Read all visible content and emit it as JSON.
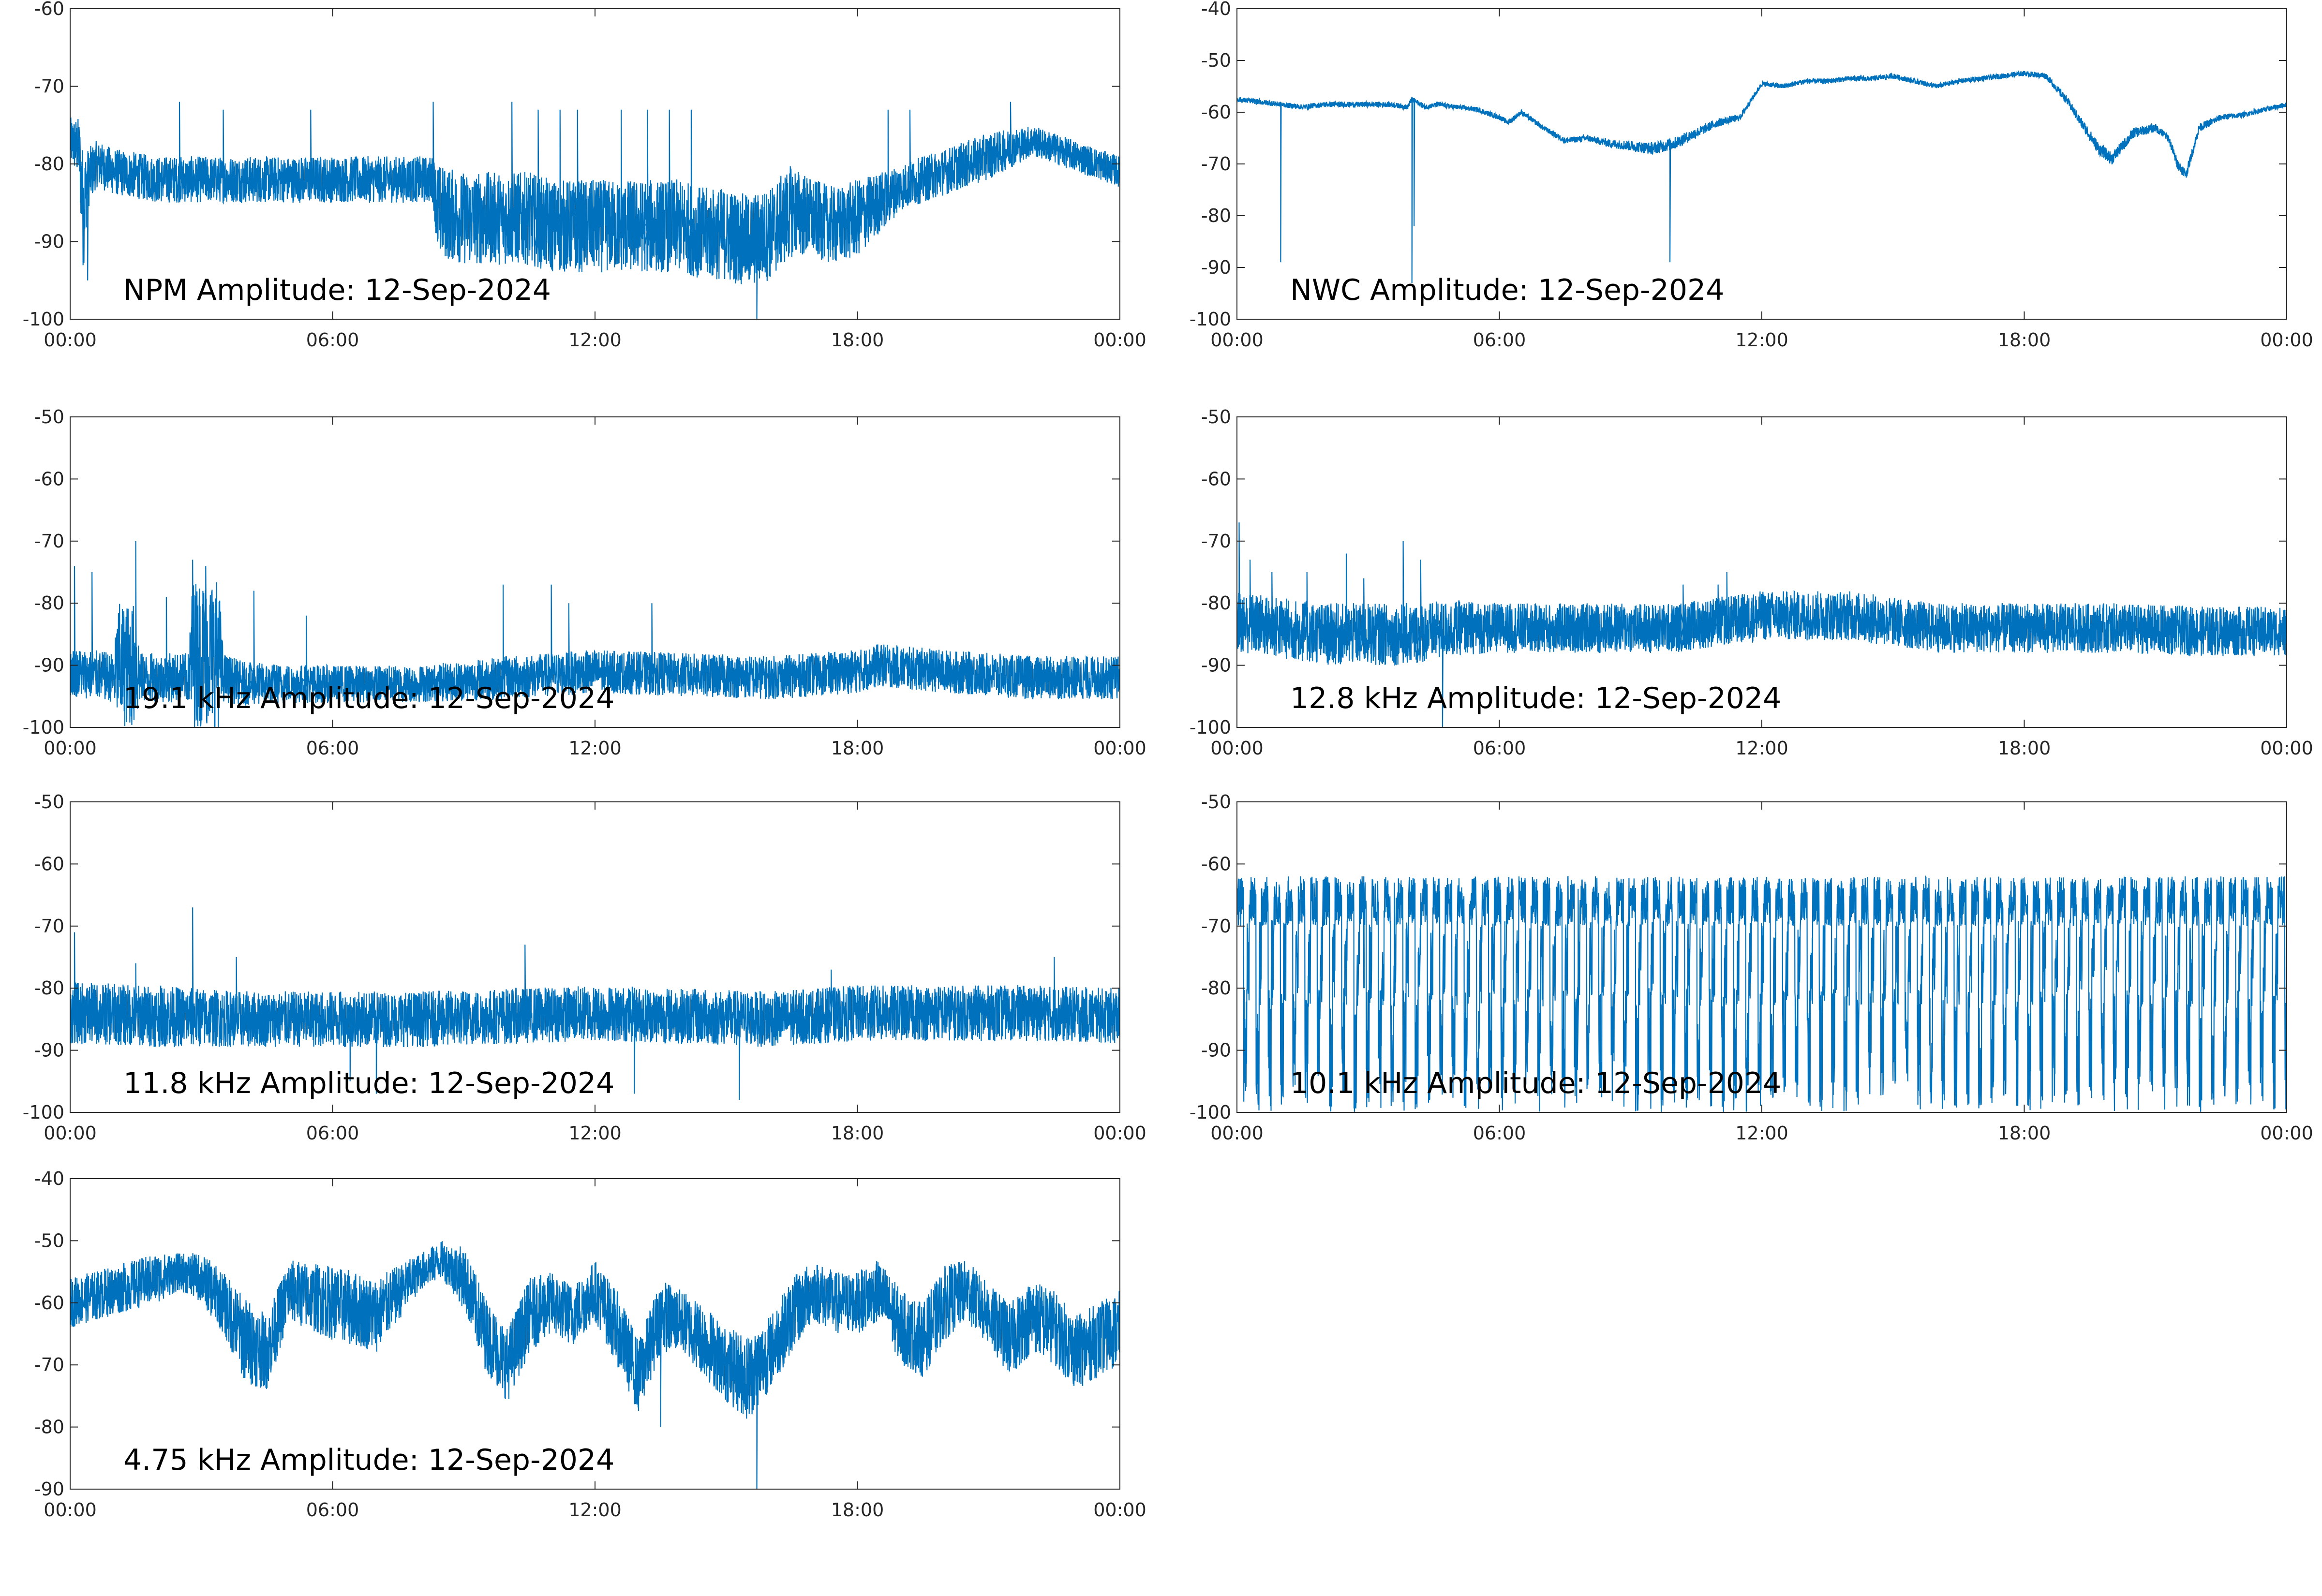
{
  "line_color": "#0072BD",
  "chart_data": [
    {
      "type": "line",
      "title": "NPM Amplitude: 12-Sep-2024",
      "xlabel": "",
      "ylabel": "",
      "xlim": [
        "00:00",
        "24:00"
      ],
      "ylim": [
        -100,
        -60
      ],
      "xticks": [
        "00:00",
        "06:00",
        "12:00",
        "18:00",
        "00:00"
      ],
      "yticks": [
        "-60",
        "-70",
        "-80",
        "-90",
        "-100"
      ],
      "series": [
        {
          "x_hours": [
            0,
            0.2,
            0.3,
            0.4,
            0.6,
            1,
            1.5,
            2,
            2.5,
            3,
            3.5,
            4,
            4.5,
            5,
            5.5,
            6,
            6.5,
            7,
            7.5,
            8,
            8.3,
            8.4,
            9,
            9.5,
            10,
            10.5,
            11,
            11.5,
            12,
            12.5,
            13,
            13.5,
            14,
            14.5,
            15,
            15.5,
            16,
            16.5,
            17,
            17.5,
            18,
            18.5,
            19,
            19.5,
            20,
            20.5,
            21,
            21.5,
            22,
            22.5,
            23,
            23.5,
            24
          ],
          "center": [
            -77,
            -78,
            -86,
            -82,
            -80,
            -81,
            -81.5,
            -82,
            -82,
            -82,
            -82,
            -82,
            -82,
            -82,
            -82,
            -82,
            -82,
            -82,
            -82,
            -82,
            -82,
            -86,
            -87,
            -87,
            -87,
            -87,
            -88,
            -88,
            -88,
            -88,
            -88,
            -88,
            -88,
            -89,
            -89,
            -90,
            -89,
            -86,
            -87,
            -88,
            -87,
            -85,
            -83,
            -82,
            -81,
            -80,
            -79,
            -78,
            -77,
            -78,
            -79,
            -80,
            -81
          ],
          "spread": [
            3,
            4,
            8,
            4,
            3,
            3,
            3,
            3,
            3,
            3,
            3,
            3,
            3,
            3,
            3,
            3,
            3,
            3,
            3,
            3,
            3,
            6,
            6,
            6,
            6,
            6,
            6,
            6,
            6,
            6,
            6,
            6,
            6,
            6,
            6,
            6,
            6,
            6,
            5,
            5,
            5,
            4,
            3,
            3,
            3,
            3,
            3,
            2.5,
            2,
            2,
            2,
            2,
            2
          ],
          "spikes": [
            [
              0.4,
              -95
            ],
            [
              0.7,
              -78
            ],
            [
              2.5,
              -72
            ],
            [
              3.5,
              -73
            ],
            [
              5.5,
              -73
            ],
            [
              8.3,
              -72
            ],
            [
              8.4,
              -90
            ],
            [
              10.1,
              -72
            ],
            [
              10.7,
              -73
            ],
            [
              11.2,
              -73
            ],
            [
              11.6,
              -73
            ],
            [
              12.6,
              -73
            ],
            [
              13.2,
              -73
            ],
            [
              13.7,
              -73
            ],
            [
              14.2,
              -73
            ],
            [
              15.7,
              -100
            ],
            [
              18.7,
              -73
            ],
            [
              19.2,
              -73
            ],
            [
              21.5,
              -72
            ]
          ]
        }
      ]
    },
    {
      "type": "line",
      "title": "NWC Amplitude: 12-Sep-2024",
      "xlabel": "",
      "ylabel": "",
      "xlim": [
        "00:00",
        "24:00"
      ],
      "ylim": [
        -100,
        -40
      ],
      "xticks": [
        "00:00",
        "06:00",
        "12:00",
        "18:00",
        "00:00"
      ],
      "yticks": [
        "-40",
        "-50",
        "-60",
        "-70",
        "-80",
        "-90",
        "-100"
      ],
      "series": [
        {
          "x_hours": [
            0,
            0.5,
            1,
            1.5,
            2,
            2.5,
            3,
            3.5,
            3.9,
            4,
            4.3,
            4.6,
            5,
            5.5,
            6,
            6.2,
            6.5,
            7,
            7.5,
            8,
            8.5,
            9,
            9.5,
            10,
            10.5,
            11,
            11.5,
            12,
            12.5,
            13,
            13.5,
            14,
            14.5,
            15,
            15.5,
            16,
            16.5,
            17,
            17.5,
            18,
            18.5,
            19,
            19.3,
            19.7,
            20,
            20.5,
            21,
            21.3,
            21.5,
            21.7,
            22,
            22.5,
            23,
            23.5,
            24
          ],
          "center": [
            -57.5,
            -58,
            -58.5,
            -59,
            -58.5,
            -58.5,
            -58.5,
            -58.5,
            -59,
            -57.5,
            -59,
            -58.5,
            -59,
            -59.5,
            -61,
            -62,
            -60,
            -63,
            -65.5,
            -65,
            -66,
            -66.5,
            -67,
            -66,
            -64,
            -62,
            -61,
            -54.5,
            -55,
            -54,
            -54,
            -53.5,
            -53.5,
            -53,
            -54,
            -55,
            -54,
            -53.5,
            -53,
            -52.5,
            -53,
            -58,
            -62,
            -67,
            -69,
            -64,
            -63,
            -65,
            -70,
            -72,
            -63,
            -61,
            -60.5,
            -59.5,
            -58.5
          ],
          "spread": [
            0.5,
            0.5,
            0.5,
            0.5,
            0.5,
            0.5,
            0.5,
            0.5,
            0.5,
            0.5,
            0.5,
            0.5,
            0.5,
            0.5,
            0.5,
            0.5,
            0.5,
            0.5,
            0.6,
            0.6,
            0.8,
            1,
            1.2,
            1.2,
            1,
            0.8,
            0.6,
            0.5,
            0.5,
            0.5,
            0.5,
            0.5,
            0.5,
            0.5,
            0.5,
            0.5,
            0.5,
            0.5,
            0.5,
            0.5,
            0.6,
            0.8,
            1,
            1.2,
            1.2,
            1,
            0.8,
            0.8,
            1,
            1,
            0.8,
            0.6,
            0.5,
            0.5,
            0.5
          ],
          "spikes": [
            [
              1,
              -89
            ],
            [
              4,
              -93
            ],
            [
              4.05,
              -82
            ],
            [
              9.9,
              -89
            ]
          ]
        }
      ]
    },
    {
      "type": "line",
      "title": "19.1 kHz Amplitude: 12-Sep-2024",
      "xlabel": "",
      "ylabel": "",
      "xlim": [
        "00:00",
        "24:00"
      ],
      "ylim": [
        -100,
        -50
      ],
      "xticks": [
        "00:00",
        "06:00",
        "12:00",
        "18:00",
        "00:00"
      ],
      "yticks": [
        "-50",
        "-60",
        "-70",
        "-80",
        "-90",
        "-100"
      ],
      "series": [
        {
          "x_hours": [
            0,
            1,
            1.1,
            1.5,
            1.6,
            2,
            2.7,
            2.8,
            3.4,
            3.5,
            4,
            6,
            8,
            10,
            12,
            14,
            16,
            18,
            18.5,
            20,
            22,
            24
          ],
          "center": [
            -91,
            -92,
            -90,
            -90,
            -92,
            -92,
            -92,
            -88,
            -88,
            -92,
            -93,
            -93,
            -93,
            -92,
            -91,
            -91.5,
            -92,
            -91,
            -90,
            -91,
            -92,
            -92
          ],
          "spread": [
            4,
            4,
            10,
            10,
            4,
            4,
            4,
            12,
            12,
            4,
            3.5,
            3,
            3,
            3.5,
            3.5,
            3.5,
            3.5,
            3.5,
            3.5,
            3.5,
            3.5,
            3.5
          ],
          "spikes": [
            [
              0.1,
              -74
            ],
            [
              0.5,
              -75
            ],
            [
              1.5,
              -70
            ],
            [
              2.2,
              -79
            ],
            [
              2.8,
              -73
            ],
            [
              3.1,
              -74
            ],
            [
              4.2,
              -78
            ],
            [
              5.4,
              -82
            ],
            [
              9.9,
              -77
            ],
            [
              11,
              -77
            ],
            [
              11.4,
              -80
            ],
            [
              13.3,
              -80
            ]
          ]
        }
      ]
    },
    {
      "type": "line",
      "title": "12.8 kHz Amplitude: 12-Sep-2024",
      "xlabel": "",
      "ylabel": "",
      "xlim": [
        "00:00",
        "24:00"
      ],
      "ylim": [
        -100,
        -50
      ],
      "xticks": [
        "00:00",
        "06:00",
        "12:00",
        "18:00",
        "00:00"
      ],
      "yticks": [
        "-50",
        "-60",
        "-70",
        "-80",
        "-90",
        "-100"
      ],
      "series": [
        {
          "x_hours": [
            0,
            1,
            2,
            3,
            4,
            5,
            6,
            8,
            10,
            11,
            12,
            13,
            14,
            15,
            16,
            18,
            20,
            22,
            24
          ],
          "center": [
            -83,
            -84,
            -85,
            -85,
            -85,
            -84,
            -84,
            -84,
            -84,
            -83,
            -82,
            -82,
            -82,
            -83,
            -84,
            -84,
            -84,
            -84.5,
            -84.5
          ],
          "spread": [
            5,
            5,
            5,
            5,
            5,
            4.5,
            4,
            4,
            4,
            4,
            4,
            4,
            4,
            4,
            4,
            4,
            4,
            4,
            4
          ],
          "spikes": [
            [
              0.05,
              -67
            ],
            [
              0.3,
              -73
            ],
            [
              0.8,
              -75
            ],
            [
              1.6,
              -75
            ],
            [
              2.5,
              -72
            ],
            [
              2.9,
              -76
            ],
            [
              3.8,
              -70
            ],
            [
              4.2,
              -73
            ],
            [
              4.7,
              -100
            ],
            [
              10.2,
              -77
            ],
            [
              11,
              -77
            ],
            [
              11.2,
              -75
            ]
          ]
        }
      ]
    },
    {
      "type": "line",
      "title": "11.8 kHz Amplitude: 12-Sep-2024",
      "xlabel": "",
      "ylabel": "",
      "xlim": [
        "00:00",
        "24:00"
      ],
      "ylim": [
        -100,
        -50
      ],
      "xticks": [
        "00:00",
        "06:00",
        "12:00",
        "18:00",
        "00:00"
      ],
      "yticks": [
        "-50",
        "-60",
        "-70",
        "-80",
        "-90",
        "-100"
      ],
      "series": [
        {
          "x_hours": [
            0,
            2,
            4,
            6,
            8,
            10,
            12,
            14,
            16,
            18,
            20,
            22,
            24
          ],
          "center": [
            -84,
            -84.5,
            -85,
            -85,
            -85,
            -84.5,
            -84,
            -84.5,
            -85,
            -84,
            -84,
            -84,
            -84.5
          ],
          "spread": [
            5,
            5,
            4.5,
            4.5,
            4.5,
            4.5,
            4.5,
            4.5,
            4.5,
            4.5,
            4.5,
            4.5,
            4.5
          ],
          "spikes": [
            [
              0.1,
              -71
            ],
            [
              1.5,
              -76
            ],
            [
              2.8,
              -67
            ],
            [
              3.8,
              -75
            ],
            [
              6.4,
              -95
            ],
            [
              7,
              -97
            ],
            [
              10.4,
              -73
            ],
            [
              12.9,
              -97
            ],
            [
              15.3,
              -98
            ],
            [
              17.4,
              -77
            ],
            [
              22.5,
              -75
            ]
          ]
        }
      ]
    },
    {
      "type": "line",
      "title": "10.1 kHz Amplitude: 12-Sep-2024",
      "xlabel": "",
      "ylabel": "",
      "xlim": [
        "00:00",
        "24:00"
      ],
      "ylim": [
        -100,
        -50
      ],
      "xticks": [
        "00:00",
        "06:00",
        "12:00",
        "18:00",
        "00:00"
      ],
      "yticks": [
        "-50",
        "-60",
        "-70",
        "-80",
        "-90",
        "-100"
      ],
      "series": [
        {
          "x_hours": [
            0,
            24
          ],
          "oscillation": {
            "high": -66,
            "low": -100,
            "period_hours": 0.28
          },
          "spikes": [
            [
              2.9,
              -62
            ],
            [
              3.6,
              -63
            ],
            [
              7.8,
              -64
            ]
          ]
        }
      ]
    },
    {
      "type": "line",
      "title": "4.75 kHz Amplitude: 12-Sep-2024",
      "xlabel": "",
      "ylabel": "",
      "xlim": [
        "00:00",
        "24:00"
      ],
      "ylim": [
        -90,
        -40
      ],
      "xticks": [
        "00:00",
        "06:00",
        "12:00",
        "18:00",
        "00:00"
      ],
      "yticks": [
        "-40",
        "-50",
        "-60",
        "-70",
        "-80",
        "-90"
      ],
      "series": [
        {
          "x_hours": [
            0,
            1,
            2,
            2.5,
            3,
            3.5,
            4,
            4.5,
            5,
            6,
            7,
            8,
            8.5,
            9,
            9.5,
            10,
            10.5,
            11,
            11.5,
            12,
            12.5,
            13,
            13.5,
            14,
            14.5,
            15,
            15.5,
            16,
            16.5,
            17,
            17.5,
            18,
            18.5,
            19,
            19.5,
            20,
            20.5,
            21,
            21.5,
            22,
            22.5,
            23,
            23.5,
            24
          ],
          "center": [
            -60,
            -58,
            -56,
            -55,
            -56,
            -60,
            -66,
            -68,
            -58,
            -60,
            -62,
            -55,
            -53,
            -56,
            -65,
            -70,
            -62,
            -60,
            -62,
            -58,
            -64,
            -72,
            -62,
            -63,
            -66,
            -70,
            -72,
            -68,
            -62,
            -58,
            -60,
            -60,
            -58,
            -64,
            -66,
            -60,
            -58,
            -62,
            -66,
            -62,
            -64,
            -68,
            -66,
            -64
          ],
          "spread": [
            4,
            4,
            4,
            3,
            4,
            5,
            7,
            6,
            5,
            6,
            6,
            3,
            3,
            5,
            6,
            6,
            6,
            5,
            5,
            5,
            6,
            6,
            6,
            5,
            6,
            6,
            7,
            6,
            6,
            5,
            5,
            5,
            5,
            6,
            6,
            6,
            5,
            5,
            6,
            6,
            6,
            6,
            6,
            6
          ],
          "spikes": [
            [
              13.5,
              -80
            ],
            [
              15.7,
              -90
            ]
          ]
        }
      ]
    }
  ]
}
